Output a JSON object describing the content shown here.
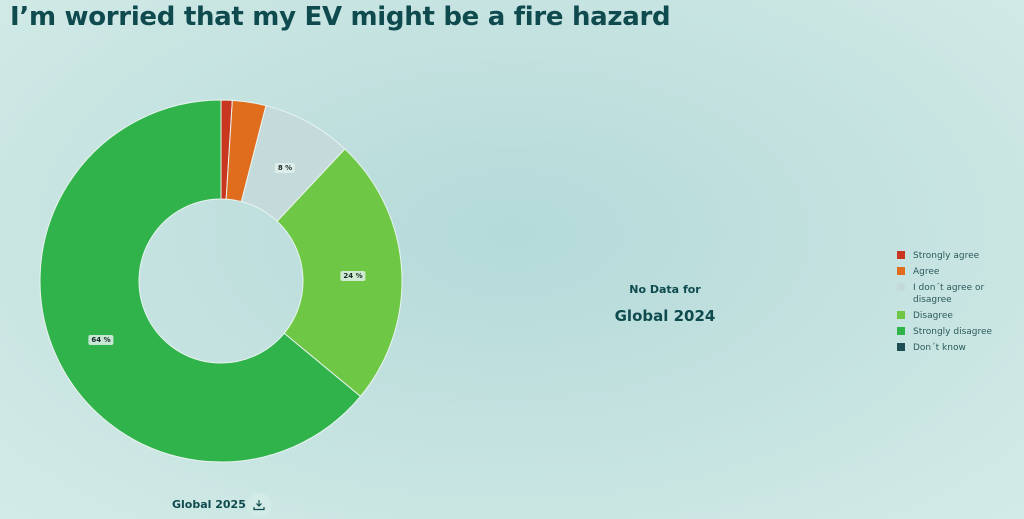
{
  "title": "I’m worried that my EV might be a fire hazard",
  "chart_data": {
    "type": "pie",
    "subtype": "donut",
    "title": "I’m worried that my EV might be a fire hazard",
    "categories": [
      "Strongly agree",
      "Agree",
      "I don't agree or disagree",
      "Disagree",
      "Strongly disagree",
      "Don't know"
    ],
    "values": [
      1,
      3,
      8,
      24,
      64,
      0
    ],
    "colors": [
      "#c9361f",
      "#e06c1e",
      "#c5dbdb",
      "#6fc845",
      "#30b34a",
      "#1d4f55"
    ],
    "shown_labels": {
      "I don't agree or disagree": "8 %",
      "Disagree": "24 %",
      "Strongly disagree": "64 %"
    },
    "legend_position": "right",
    "panels": [
      {
        "name": "Global 2025",
        "has_data": true
      },
      {
        "name": "Global 2024",
        "has_data": false
      }
    ]
  },
  "labels": {
    "neutral": "8 %",
    "disagree": "24 %",
    "strongly_disagree": "64 %"
  },
  "caption": "Global 2025",
  "download_icon": "download-icon",
  "no_data": {
    "line1": "No Data for",
    "line2": "Global 2024"
  },
  "legend": {
    "items": [
      {
        "label": "Strongly agree",
        "color": "#c9361f"
      },
      {
        "label": "Agree",
        "color": "#e06c1e"
      },
      {
        "label": "I don´t agree or disagree",
        "color": "#c5dbdb"
      },
      {
        "label": "Disagree",
        "color": "#6fc845"
      },
      {
        "label": "Strongly disagree",
        "color": "#30b34a"
      },
      {
        "label": "Don´t know",
        "color": "#1d4f55"
      }
    ]
  }
}
